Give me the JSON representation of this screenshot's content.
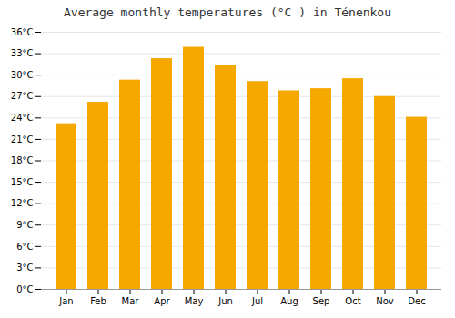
{
  "chart_data": {
    "type": "bar",
    "title": "Average monthly temperatures (°C ) in Ténenkou",
    "categories": [
      "Jan",
      "Feb",
      "Mar",
      "Apr",
      "May",
      "Jun",
      "Jul",
      "Aug",
      "Sep",
      "Oct",
      "Nov",
      "Dec"
    ],
    "values": [
      23.2,
      26.2,
      29.3,
      32.3,
      33.9,
      31.4,
      29.1,
      27.8,
      28.1,
      29.5,
      27.0,
      24.1
    ],
    "color": "#F5A800",
    "ylim": [
      0,
      36
    ],
    "yticks": [
      {
        "value": 0,
        "label": "0°C"
      },
      {
        "value": 3,
        "label": "3°C"
      },
      {
        "value": 6,
        "label": "6°C"
      },
      {
        "value": 9,
        "label": "9°C"
      },
      {
        "value": 12,
        "label": "12°C"
      },
      {
        "value": 15,
        "label": "15°C"
      },
      {
        "value": 18,
        "label": "18°C"
      },
      {
        "value": 21,
        "label": "21°C"
      },
      {
        "value": 24,
        "label": "24°C"
      },
      {
        "value": 27,
        "label": "27°C"
      },
      {
        "value": 30,
        "label": "30°C"
      },
      {
        "value": 33,
        "label": "33°C"
      },
      {
        "value": 36,
        "label": "36°C"
      }
    ],
    "grid": true
  }
}
